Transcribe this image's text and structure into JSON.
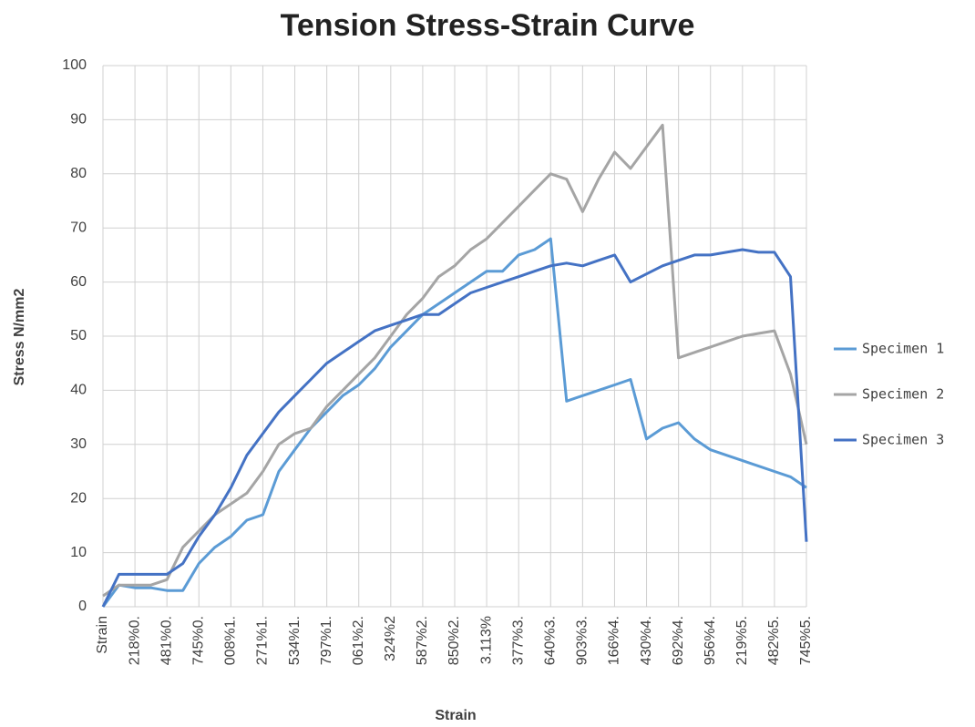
{
  "chart_data": {
    "type": "line",
    "title": "Tension Stress-Strain Curve",
    "x_label": "Strain",
    "y_label": "Stress N/mm2",
    "categories": [
      "Strain",
      null,
      "218%0.",
      null,
      "481%0.",
      null,
      "745%0.",
      null,
      "008%1.",
      null,
      "271%1.",
      null,
      "534%1.",
      null,
      "797%1.",
      null,
      "061%2.",
      null,
      "324%2",
      null,
      "587%2.",
      null,
      "850%2.",
      null,
      "3.113%",
      null,
      "377%3.",
      null,
      "640%3.",
      null,
      "903%3.",
      null,
      "166%4.",
      null,
      "430%4.",
      null,
      "692%4.",
      null,
      "956%4.",
      null,
      "219%5.",
      null,
      "482%5.",
      null,
      "745%5."
    ],
    "series": [
      {
        "name": "Specimen 1",
        "color": "#5b9bd5",
        "values": [
          0,
          4,
          3.5,
          3.5,
          3,
          3,
          8,
          11,
          13,
          16,
          17,
          25,
          29,
          33,
          36,
          39,
          41,
          44,
          48,
          51,
          54,
          56,
          58,
          60,
          62,
          62,
          65,
          66,
          68,
          38,
          39,
          40,
          41,
          42,
          31,
          33,
          34,
          31,
          29,
          28,
          27,
          26,
          25,
          24,
          22
        ]
      },
      {
        "name": "Specimen 2",
        "color": "#a5a5a5",
        "values": [
          2,
          4,
          4,
          4,
          5,
          11,
          14,
          17,
          19,
          21,
          25,
          30,
          32,
          33,
          37,
          40,
          43,
          46,
          50,
          54,
          57,
          61,
          63,
          66,
          68,
          71,
          74,
          77,
          80,
          79,
          73,
          79,
          84,
          81,
          85,
          89,
          46,
          47,
          48,
          49,
          50,
          50.5,
          51,
          43,
          30
        ]
      },
      {
        "name": "Specimen 3",
        "color": "#4472c4",
        "values": [
          0,
          6,
          6,
          6,
          6,
          8,
          13,
          17,
          22,
          28,
          32,
          36,
          39,
          42,
          45,
          47,
          49,
          51,
          52,
          53,
          54,
          54,
          56,
          58,
          59,
          60,
          61,
          62,
          63,
          63.5,
          63,
          64,
          65,
          60,
          61.5,
          63,
          64,
          65,
          65,
          65.5,
          66,
          65.5,
          65.5,
          61,
          12
        ]
      }
    ],
    "ylim": [
      0,
      100
    ],
    "yticks": [
      0,
      10,
      20,
      30,
      40,
      50,
      60,
      70,
      80,
      90,
      100
    ],
    "grid": true,
    "legend": "right"
  }
}
